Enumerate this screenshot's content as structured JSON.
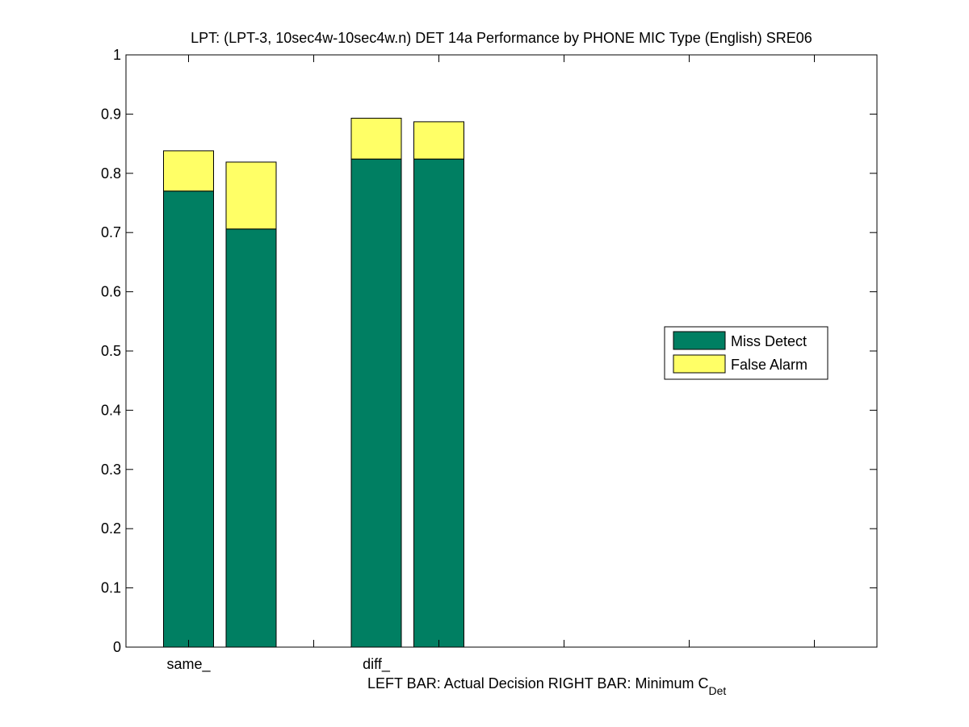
{
  "chart_data": {
    "type": "bar",
    "stacked": true,
    "title": "LPT: (LPT-3, 10sec4w-10sec4w.n) DET 14a Performance by PHONE MIC Type (English) SRE06",
    "xlabel_main": "LEFT BAR: Actual Decision     RIGHT BAR: Minimum C",
    "xlabel_sub": "Det",
    "categories": [
      "same_",
      "diff_"
    ],
    "bar_roles": [
      "Actual Decision",
      "Minimum C_Det"
    ],
    "series": [
      {
        "name": "Miss Detect",
        "color": "#007f62",
        "values": [
          [
            0.77,
            0.706
          ],
          [
            0.824,
            0.824
          ]
        ]
      },
      {
        "name": "False Alarm",
        "color": "#ffff66",
        "values": [
          [
            0.068,
            0.113
          ],
          [
            0.069,
            0.063
          ]
        ]
      }
    ],
    "y_ticks": [
      "0",
      "0.1",
      "0.2",
      "0.3",
      "0.4",
      "0.5",
      "0.6",
      "0.7",
      "0.8",
      "0.9",
      "1"
    ],
    "ylim": [
      0,
      1
    ],
    "grid": false,
    "legend_position": "right"
  }
}
